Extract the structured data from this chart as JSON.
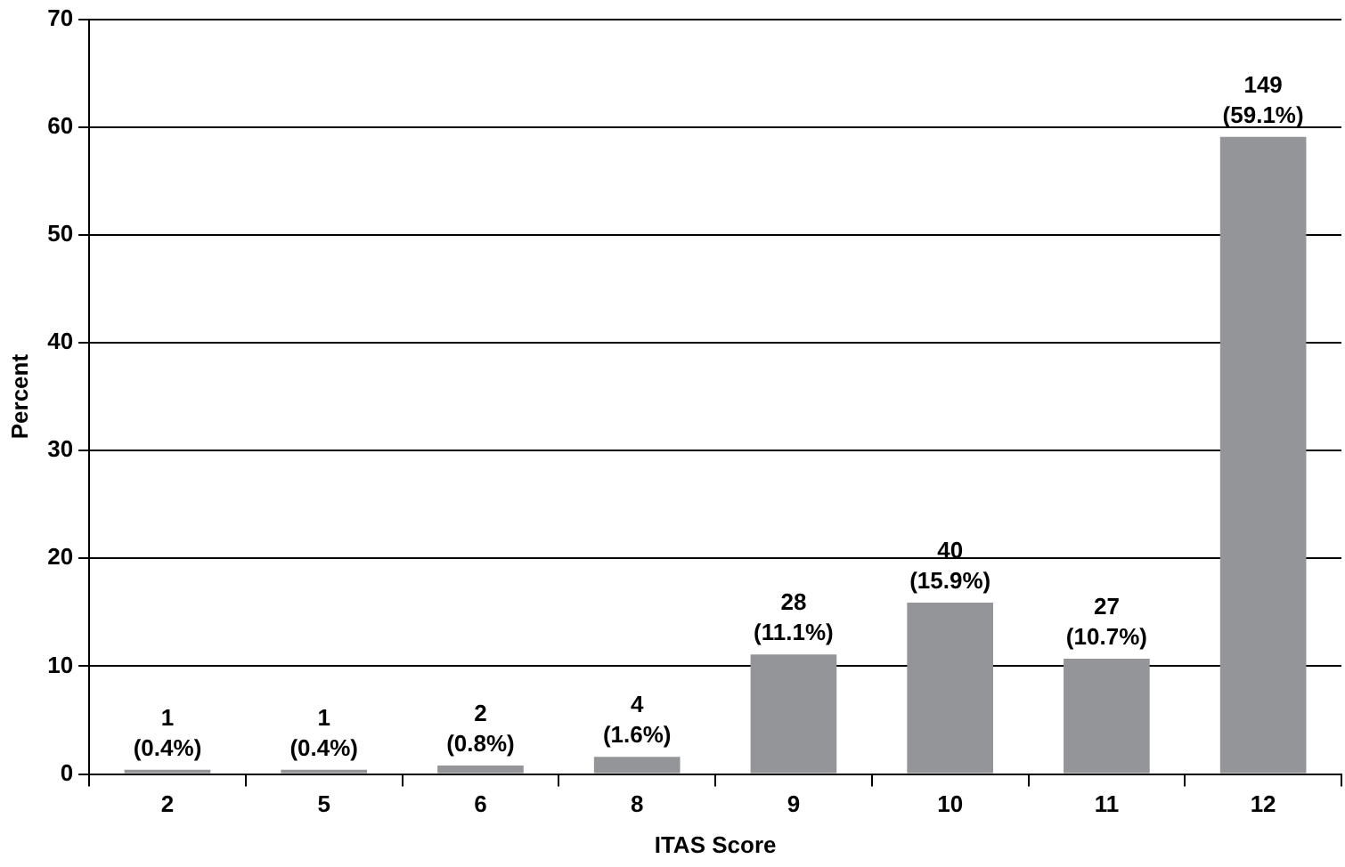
{
  "chart_data": {
    "type": "bar",
    "xlabel": "ITAS Score",
    "ylabel": "Percent",
    "categories": [
      "2",
      "5",
      "6",
      "8",
      "9",
      "10",
      "11",
      "12"
    ],
    "values": [
      0.4,
      0.4,
      0.8,
      1.6,
      11.1,
      15.9,
      10.7,
      59.1
    ],
    "value_labels": [
      "1 (0.4%)",
      "1 (0.4%)",
      "2 (0.8%)",
      "4 (1.6%)",
      "28 (11.1%)",
      "40 (15.9%)",
      "27 (10.7%)",
      "149 (59.1%)"
    ],
    "color": "#939598",
    "ylim": [
      0,
      70
    ],
    "yticks": [
      0,
      10,
      20,
      30,
      40,
      50,
      60,
      70
    ],
    "grid": "y",
    "legend": false
  }
}
